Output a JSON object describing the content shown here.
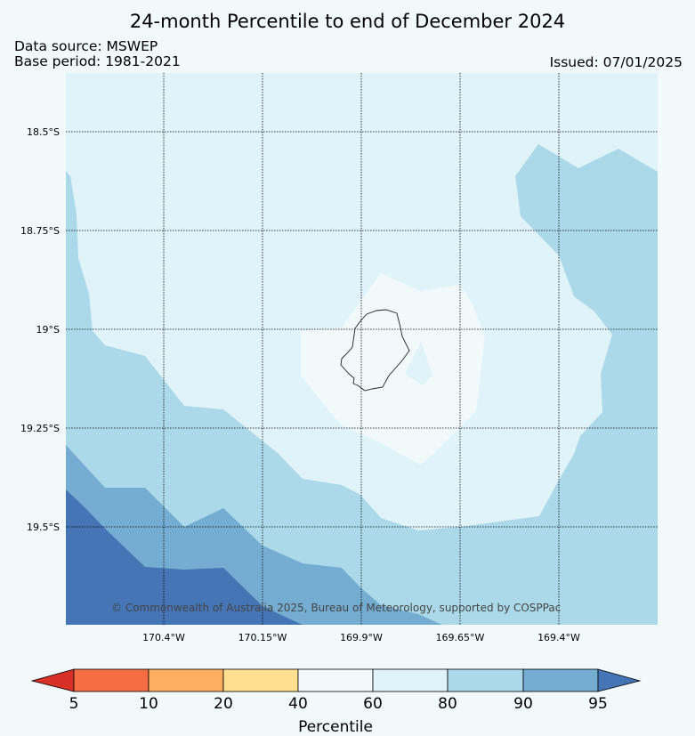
{
  "title": "24-month Percentile to end of December 2024",
  "data_source": "Data source: MSWEP",
  "base_period": "Base period: 1981-2021",
  "issued": "Issued: 07/01/2025",
  "copyright": "© Commonwealth of Australia 2025, Bureau of Meteorology, supported by COSPPac",
  "latitude_labels": [
    "18.5°S",
    "18.75°S",
    "19°S",
    "19.25°S",
    "19.5°S"
  ],
  "longitude_labels": [
    "170.4°W",
    "170.15°W",
    "169.9°W",
    "169.65°W",
    "169.4°W"
  ],
  "colorbar": {
    "title": "Percentile",
    "tick_labels": [
      "5",
      "10",
      "20",
      "40",
      "60",
      "80",
      "90",
      "95"
    ],
    "colors": [
      "#d73027",
      "#f46d43",
      "#fdae61",
      "#fee090",
      "#f1f9fb",
      "#e0f3f8",
      "#abd9e9",
      "#74add1",
      "#4575b4"
    ]
  },
  "map_colors": {
    "band_60_80": "#e0f3f8",
    "band_40_60": "#f1f9fb",
    "band_80_90": "#abd9e9",
    "band_90_95": "#74add1",
    "band_95_plus": "#4575b4"
  }
}
